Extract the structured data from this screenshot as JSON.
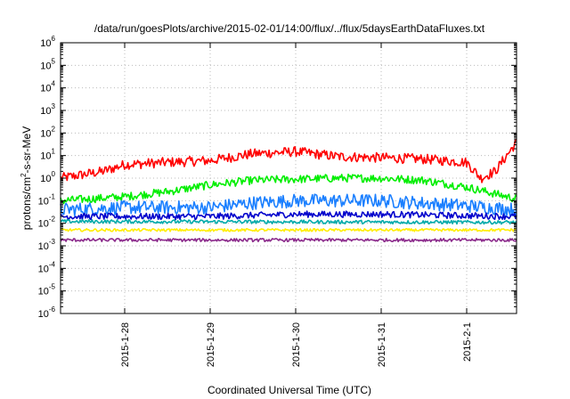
{
  "chart_data": {
    "type": "line",
    "title": "/data/run/goesPlots/archive/2015-02-01/14:00/flux/../flux/5daysEarthDataFluxes.txt",
    "xlabel": "Coordinated Universal Time (UTC)",
    "ylabel": {
      "pre": "protons/cm",
      "sup": "2",
      "post": "-s-sr-MeV"
    },
    "yscale": "log",
    "ylim_exp": [
      -6,
      6
    ],
    "yticks": [
      {
        "base": "10",
        "exp": "6"
      },
      {
        "base": "10",
        "exp": "5"
      },
      {
        "base": "10",
        "exp": "4"
      },
      {
        "base": "10",
        "exp": "3"
      },
      {
        "base": "10",
        "exp": "2"
      },
      {
        "base": "10",
        "exp": "1"
      },
      {
        "base": "10",
        "exp": "0"
      },
      {
        "base": "10",
        "exp": "-1"
      },
      {
        "base": "10",
        "exp": "-2"
      },
      {
        "base": "10",
        "exp": "-3"
      },
      {
        "base": "10",
        "exp": "-4"
      },
      {
        "base": "10",
        "exp": "-5"
      },
      {
        "base": "10",
        "exp": "-6"
      }
    ],
    "xlim": [
      "2015-01-27 06:00",
      "2015-02-01 14:00"
    ],
    "xticks": [
      {
        "label": "2015-1-28",
        "date": "2015-01-28 00:00"
      },
      {
        "label": "2015-1-29",
        "date": "2015-01-29 00:00"
      },
      {
        "label": "2015-1-30",
        "date": "2015-01-30 00:00"
      },
      {
        "label": "2015-1-31",
        "date": "2015-01-31 00:00"
      },
      {
        "label": "2015-2-1",
        "date": "2015-02-01 00:00"
      }
    ],
    "grid": true,
    "series": [
      {
        "color": "#ff0000",
        "noise": 0.22,
        "x": [
          "2015-01-27 06:00",
          "2015-01-27 18:00",
          "2015-01-28 00:00",
          "2015-01-28 12:00",
          "2015-01-29 00:00",
          "2015-01-29 12:00",
          "2015-01-30 00:00",
          "2015-01-30 12:00",
          "2015-01-31 00:00",
          "2015-01-31 12:00",
          "2015-02-01 00:00",
          "2015-02-01 04:00",
          "2015-02-01 08:00",
          "2015-02-01 14:00"
        ],
        "y": [
          1.0,
          2.0,
          4.0,
          5.0,
          6.0,
          12.0,
          15.0,
          9.0,
          8.0,
          7.0,
          5.0,
          1.0,
          2.0,
          40.0
        ]
      },
      {
        "color": "#00ee00",
        "noise": 0.18,
        "x": [
          "2015-01-27 06:00",
          "2015-01-28 00:00",
          "2015-01-28 12:00",
          "2015-01-29 00:00",
          "2015-01-29 12:00",
          "2015-01-30 00:00",
          "2015-01-30 12:00",
          "2015-01-31 00:00",
          "2015-01-31 12:00",
          "2015-02-01 00:00",
          "2015-02-01 14:00"
        ],
        "y": [
          0.1,
          0.15,
          0.25,
          0.5,
          0.8,
          0.9,
          1.0,
          1.0,
          0.8,
          0.4,
          0.12
        ]
      },
      {
        "color": "#1a7fff",
        "noise": 0.3,
        "x": [
          "2015-01-27 06:00",
          "2015-01-28 00:00",
          "2015-01-29 00:00",
          "2015-01-29 12:00",
          "2015-01-30 00:00",
          "2015-01-31 00:00",
          "2015-02-01 00:00",
          "2015-02-01 14:00"
        ],
        "y": [
          0.04,
          0.05,
          0.05,
          0.08,
          0.1,
          0.1,
          0.06,
          0.04
        ]
      },
      {
        "color": "#0000cc",
        "noise": 0.14,
        "x": [
          "2015-01-27 06:00",
          "2015-01-29 00:00",
          "2015-01-30 00:00",
          "2015-01-31 00:00",
          "2015-02-01 14:00"
        ],
        "y": [
          0.02,
          0.02,
          0.025,
          0.025,
          0.02
        ]
      },
      {
        "color": "#00aaaa",
        "noise": 0.08,
        "x": [
          "2015-01-27 06:00",
          "2015-02-01 14:00"
        ],
        "y": [
          0.012,
          0.011
        ]
      },
      {
        "color": "#ffee00",
        "noise": 0.06,
        "x": [
          "2015-01-27 06:00",
          "2015-02-01 14:00"
        ],
        "y": [
          0.005,
          0.005
        ]
      },
      {
        "color": "#8b2a8b",
        "noise": 0.07,
        "x": [
          "2015-01-27 06:00",
          "2015-02-01 14:00"
        ],
        "y": [
          0.0018,
          0.0018
        ]
      }
    ]
  }
}
